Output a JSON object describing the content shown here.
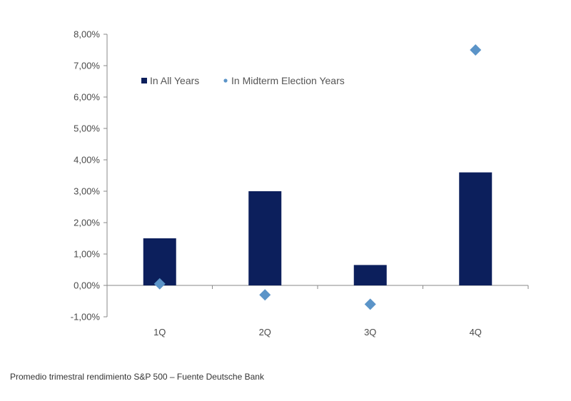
{
  "chart_data": {
    "type": "bar",
    "categories": [
      "1Q",
      "2Q",
      "3Q",
      "4Q"
    ],
    "series": [
      {
        "name": "In All Years",
        "kind": "bar",
        "color": "#0c1f5c",
        "values": [
          1.5,
          3.0,
          0.65,
          3.6
        ]
      },
      {
        "name": "In Midterm Election Years",
        "kind": "marker",
        "marker": "diamond",
        "color": "#5b94c8",
        "values": [
          0.05,
          -0.3,
          -0.6,
          7.5
        ]
      }
    ],
    "ylim": [
      -1,
      8
    ],
    "yticks": [
      8,
      7,
      6,
      5,
      4,
      3,
      2,
      1,
      0,
      -1
    ],
    "ytick_labels": [
      "8,00%",
      "7,00%",
      "6,00%",
      "5,00%",
      "4,00%",
      "3,00%",
      "2,00%",
      "1,00%",
      "0,00%",
      "-1,00%"
    ],
    "legend_position": "top-left inside plot",
    "grid": false
  },
  "caption": "Promedio trimestral rendimiento S&P 500 – Fuente Deutsche Bank"
}
